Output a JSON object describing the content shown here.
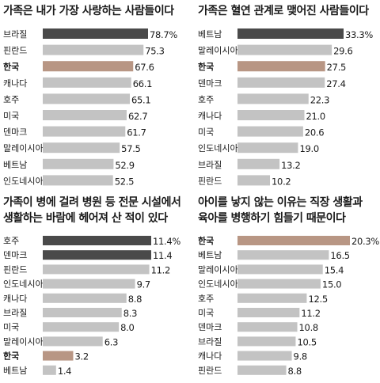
{
  "colors": {
    "dark": "#4a4a4a",
    "highlight": "#b89684",
    "normal": "#c3c3c3"
  },
  "chart_data": [
    {
      "type": "bar",
      "title": "가족은 내가 가장 사랑하는 사람들이다",
      "categories": [
        "브라질",
        "핀란드",
        "한국",
        "캐나다",
        "호주",
        "미국",
        "덴마크",
        "말레이시아",
        "베트남",
        "인도네시아"
      ],
      "values": [
        78.7,
        75.3,
        67.6,
        66.1,
        65.1,
        62.7,
        61.7,
        57.5,
        52.9,
        52.5
      ],
      "value_labels": [
        "78.7%",
        "75.3",
        "67.6",
        "66.1",
        "65.1",
        "62.7",
        "61.7",
        "57.5",
        "52.9",
        "52.5"
      ],
      "styles": [
        "dark",
        "normal",
        "highlight",
        "normal",
        "normal",
        "normal",
        "normal",
        "normal",
        "normal",
        "normal"
      ]
    },
    {
      "type": "bar",
      "title": "가족은 혈연 관계로 맺어진 사람들이다",
      "categories": [
        "베트남",
        "말레이시아",
        "한국",
        "덴마크",
        "호주",
        "캐나다",
        "미국",
        "인도네시아",
        "브라질",
        "핀란드"
      ],
      "values": [
        33.3,
        29.6,
        27.5,
        27.4,
        22.3,
        21.0,
        20.6,
        19.0,
        13.2,
        10.2
      ],
      "value_labels": [
        "33.3%",
        "29.6",
        "27.5",
        "27.4",
        "22.3",
        "21.0",
        "20.6",
        "19.0",
        "13.2",
        "10.2"
      ],
      "styles": [
        "dark",
        "normal",
        "highlight",
        "normal",
        "normal",
        "normal",
        "normal",
        "normal",
        "normal",
        "normal"
      ]
    },
    {
      "type": "bar",
      "title": "가족이 병에 걸려 병원 등 전문 시설에서",
      "title2": "생활하는 바람에 헤어져 산 적이 있다",
      "categories": [
        "호주",
        "덴마크",
        "핀란드",
        "인도네시아",
        "캐나다",
        "브라질",
        "미국",
        "말레이시아",
        "한국",
        "베트남"
      ],
      "values": [
        11.4,
        11.4,
        11.2,
        9.7,
        8.8,
        8.3,
        8.0,
        6.3,
        3.2,
        1.4
      ],
      "value_labels": [
        "11.4%",
        "11.4",
        "11.2",
        "9.7",
        "8.8",
        "8.3",
        "8.0",
        "6.3",
        "3.2",
        "1.4"
      ],
      "styles": [
        "dark",
        "dark",
        "normal",
        "normal",
        "normal",
        "normal",
        "normal",
        "normal",
        "highlight",
        "normal"
      ]
    },
    {
      "type": "bar",
      "title": "아이를 낳지 않는 이유는 직장 생활과",
      "title2": "육아를 병행하기 힘들기 때문이다",
      "categories": [
        "한국",
        "베트남",
        "말레이시아",
        "인도네시아",
        "호주",
        "미국",
        "덴마크",
        "브라질",
        "캐나다",
        "핀란드"
      ],
      "values": [
        20.3,
        16.5,
        15.4,
        15.0,
        12.5,
        11.2,
        10.8,
        10.5,
        9.8,
        8.8
      ],
      "value_labels": [
        "20.3%",
        "16.5",
        "15.4",
        "15.0",
        "12.5",
        "11.2",
        "10.8",
        "10.5",
        "9.8",
        "8.8"
      ],
      "styles": [
        "highlight",
        "normal",
        "normal",
        "normal",
        "normal",
        "normal",
        "normal",
        "normal",
        "normal",
        "normal"
      ]
    }
  ]
}
